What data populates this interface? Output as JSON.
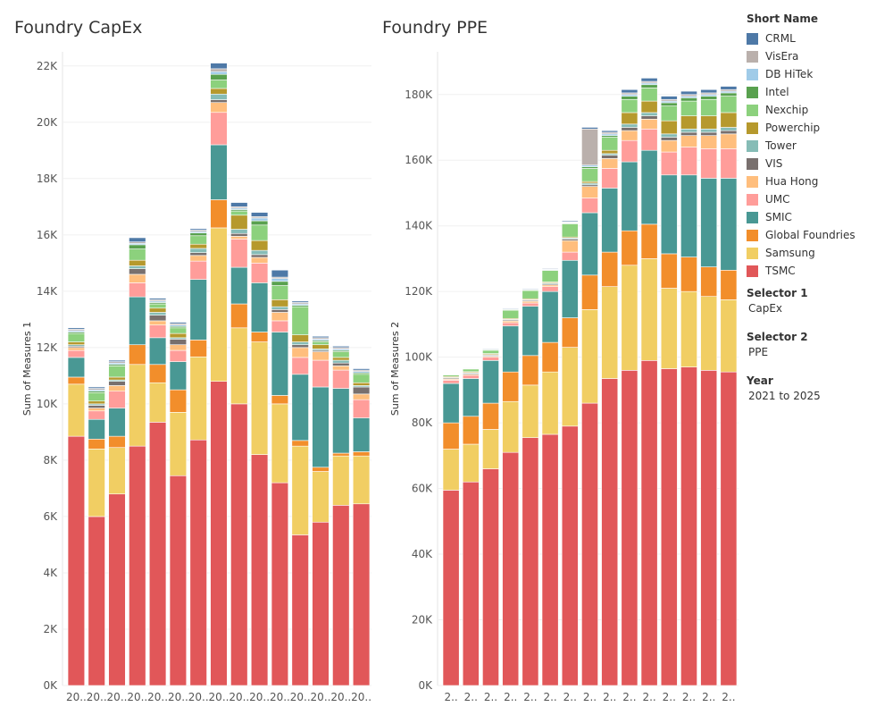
{
  "legend": {
    "title": "Short Name",
    "items": [
      {
        "name": "CRML",
        "color": "#4e79a7"
      },
      {
        "name": "VisEra",
        "color": "#bab0ac"
      },
      {
        "name": "DB HiTek",
        "color": "#a0cbe8"
      },
      {
        "name": "Intel",
        "color": "#59a14f"
      },
      {
        "name": "Nexchip",
        "color": "#8cd17d"
      },
      {
        "name": "Powerchip",
        "color": "#b6992d"
      },
      {
        "name": "Tower",
        "color": "#86bcb6"
      },
      {
        "name": "VIS",
        "color": "#79706e"
      },
      {
        "name": "Hua Hong",
        "color": "#ffbe7d"
      },
      {
        "name": "UMC",
        "color": "#ff9d9a"
      },
      {
        "name": "SMIC",
        "color": "#499894"
      },
      {
        "name": "Global Foundries",
        "color": "#f28e2b"
      },
      {
        "name": "Samsung",
        "color": "#f1ce63"
      },
      {
        "name": "TSMC",
        "color": "#e15759"
      }
    ]
  },
  "selectors": {
    "selector1_title": "Selector 1",
    "selector1_value": "CapEx",
    "selector2_title": "Selector 2",
    "selector2_value": "PPE",
    "year_title": "Year",
    "year_value": "2021 to 2025"
  },
  "chart_data": [
    {
      "type": "bar",
      "stacked": true,
      "title": "Foundry CapEx",
      "ylabel": "Sum of Measures 1",
      "xlabel": "",
      "ylim": [
        0,
        22500
      ],
      "yticks": [
        0,
        2000,
        4000,
        6000,
        8000,
        10000,
        12000,
        14000,
        16000,
        18000,
        20000,
        22000
      ],
      "ytick_labels": [
        "0K",
        "2K",
        "4K",
        "6K",
        "8K",
        "10K",
        "12K",
        "14K",
        "16K",
        "18K",
        "20K",
        "22K"
      ],
      "categories": [
        "20..",
        "20..",
        "20..",
        "20..",
        "20..",
        "20..",
        "20..",
        "20..",
        "20..",
        "20..",
        "20..",
        "20..",
        "20..",
        "20..",
        "20.."
      ],
      "series": [
        {
          "name": "TSMC",
          "values": [
            8850,
            6000,
            6800,
            8500,
            9350,
            7450,
            8720,
            10800,
            10000,
            8200,
            7200,
            5350,
            5800,
            6400,
            6450
          ]
        },
        {
          "name": "Samsung",
          "values": [
            1850,
            2400,
            1650,
            2900,
            1400,
            2250,
            2950,
            5450,
            2700,
            4000,
            2800,
            3150,
            1800,
            1750,
            1700
          ]
        },
        {
          "name": "Global Foundries",
          "values": [
            250,
            350,
            400,
            700,
            650,
            800,
            600,
            1000,
            850,
            350,
            300,
            200,
            150,
            100,
            150
          ]
        },
        {
          "name": "SMIC",
          "values": [
            700,
            700,
            1000,
            1700,
            950,
            1000,
            2150,
            1950,
            1300,
            1750,
            2250,
            2350,
            2850,
            2300,
            1200
          ]
        },
        {
          "name": "UMC",
          "values": [
            250,
            300,
            600,
            500,
            450,
            400,
            650,
            1150,
            1000,
            700,
            400,
            600,
            950,
            650,
            650
          ]
        },
        {
          "name": "Hua Hong",
          "values": [
            100,
            100,
            200,
            300,
            150,
            200,
            200,
            350,
            100,
            200,
            300,
            350,
            300,
            150,
            200
          ]
        },
        {
          "name": "VIS",
          "values": [
            50,
            100,
            150,
            200,
            200,
            200,
            100,
            100,
            100,
            100,
            100,
            100,
            50,
            100,
            250
          ]
        },
        {
          "name": "Tower",
          "values": [
            50,
            50,
            50,
            100,
            100,
            50,
            150,
            200,
            150,
            150,
            100,
            100,
            50,
            100,
            50
          ]
        },
        {
          "name": "Powerchip",
          "values": [
            100,
            100,
            100,
            200,
            150,
            150,
            150,
            200,
            500,
            350,
            250,
            250,
            150,
            100,
            100
          ]
        },
        {
          "name": "Nexchip",
          "values": [
            300,
            300,
            400,
            400,
            150,
            200,
            300,
            300,
            150,
            550,
            500,
            1000,
            100,
            200,
            300
          ]
        },
        {
          "name": "Intel",
          "values": [
            50,
            50,
            50,
            150,
            50,
            50,
            100,
            200,
            50,
            150,
            150,
            50,
            50,
            50,
            50
          ]
        },
        {
          "name": "DB HiTek",
          "values": [
            50,
            50,
            50,
            50,
            50,
            50,
            50,
            100,
            50,
            100,
            100,
            50,
            50,
            50,
            50
          ]
        },
        {
          "name": "VisEra",
          "values": [
            50,
            50,
            50,
            50,
            50,
            50,
            50,
            100,
            50,
            50,
            50,
            50,
            50,
            50,
            50
          ]
        },
        {
          "name": "CRML",
          "values": [
            50,
            50,
            50,
            150,
            50,
            50,
            50,
            200,
            150,
            150,
            250,
            50,
            50,
            50,
            50
          ]
        }
      ]
    },
    {
      "type": "bar",
      "stacked": true,
      "title": "Foundry PPE",
      "ylabel": "Sum of Measures 2",
      "xlabel": "",
      "ylim": [
        0,
        193000
      ],
      "yticks": [
        0,
        20000,
        40000,
        60000,
        80000,
        100000,
        120000,
        140000,
        160000,
        180000
      ],
      "ytick_labels": [
        "0K",
        "20K",
        "40K",
        "60K",
        "80K",
        "100K",
        "120K",
        "140K",
        "160K",
        "180K"
      ],
      "categories": [
        "2..",
        "2..",
        "2..",
        "2..",
        "2..",
        "2..",
        "2..",
        "2..",
        "2..",
        "2..",
        "2..",
        "2..",
        "2..",
        "2..",
        "2.."
      ],
      "series": [
        {
          "name": "TSMC",
          "values": [
            59500,
            62000,
            66000,
            71000,
            75500,
            76500,
            79000,
            86000,
            93500,
            96000,
            99000,
            96500,
            97000,
            96000,
            95500
          ]
        },
        {
          "name": "Samsung",
          "values": [
            12500,
            11500,
            12000,
            15500,
            16000,
            19000,
            24000,
            28500,
            28000,
            32000,
            31000,
            24500,
            23000,
            22500,
            22000
          ]
        },
        {
          "name": "Global Foundries",
          "values": [
            8000,
            8500,
            8000,
            9000,
            9000,
            9000,
            9000,
            10500,
            10500,
            10500,
            10500,
            10500,
            10500,
            9000,
            9000
          ]
        },
        {
          "name": "SMIC",
          "values": [
            12000,
            11500,
            13000,
            14000,
            15000,
            15500,
            17500,
            19000,
            19500,
            21000,
            22500,
            24000,
            25000,
            27000,
            28000
          ]
        },
        {
          "name": "UMC",
          "values": [
            1000,
            1000,
            1000,
            1000,
            1000,
            1500,
            2500,
            4500,
            6000,
            6500,
            6500,
            7000,
            8500,
            9000,
            9000
          ]
        },
        {
          "name": "Hua Hong",
          "values": [
            300,
            300,
            300,
            500,
            500,
            500,
            3500,
            3500,
            3000,
            3000,
            3000,
            3500,
            3500,
            4000,
            4500
          ]
        },
        {
          "name": "VIS",
          "values": [
            300,
            300,
            300,
            300,
            300,
            300,
            500,
            500,
            1000,
            1000,
            1000,
            1000,
            1000,
            1000,
            1000
          ]
        },
        {
          "name": "Tower",
          "values": [
            200,
            200,
            200,
            200,
            200,
            300,
            300,
            500,
            500,
            1000,
            1000,
            1000,
            1000,
            1000,
            1000
          ]
        },
        {
          "name": "Powerchip",
          "values": [
            300,
            300,
            300,
            300,
            300,
            300,
            300,
            500,
            1000,
            3500,
            3500,
            4000,
            4000,
            4000,
            4500
          ]
        },
        {
          "name": "Nexchip",
          "values": [
            500,
            800,
            1000,
            2500,
            2500,
            3500,
            4000,
            4000,
            4000,
            4000,
            4000,
            4500,
            4500,
            5000,
            5000
          ]
        },
        {
          "name": "Intel",
          "values": [
            50,
            100,
            200,
            200,
            200,
            200,
            200,
            500,
            500,
            1000,
            1000,
            1000,
            1000,
            1000,
            1000
          ]
        },
        {
          "name": "DB HiTek",
          "values": [
            50,
            100,
            100,
            100,
            100,
            200,
            200,
            500,
            500,
            500,
            500,
            500,
            500,
            500,
            500
          ]
        },
        {
          "name": "VisEra",
          "values": [
            50,
            100,
            100,
            100,
            100,
            200,
            200,
            11000,
            500,
            500,
            500,
            500,
            500,
            500,
            500
          ]
        },
        {
          "name": "CRML",
          "values": [
            50,
            100,
            200,
            200,
            200,
            200,
            300,
            500,
            500,
            1000,
            1000,
            1000,
            1000,
            1000,
            1000
          ]
        }
      ]
    }
  ]
}
